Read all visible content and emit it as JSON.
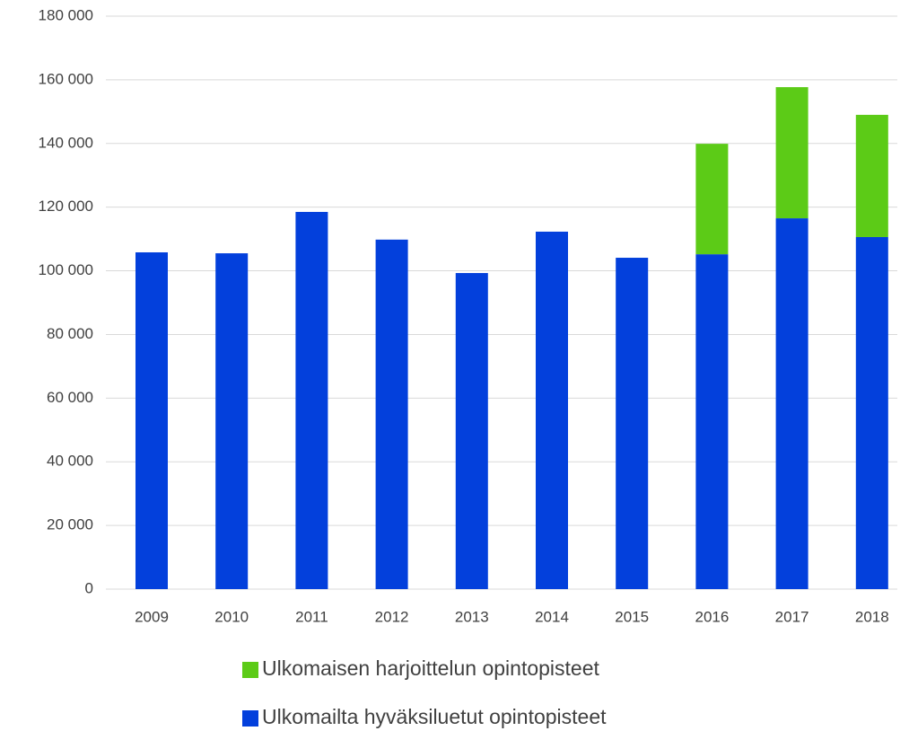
{
  "chart_data": {
    "type": "stacked_bar",
    "categories": [
      "2009",
      "2010",
      "2011",
      "2012",
      "2013",
      "2014",
      "2015",
      "2016",
      "2017",
      "2018"
    ],
    "series": [
      {
        "name": "Ulkomailta hyväksiluetut opintopisteet",
        "color": "#0340dc",
        "values": [
          105800,
          105500,
          118500,
          109800,
          99300,
          112300,
          104100,
          105200,
          116500,
          110600
        ]
      },
      {
        "name": "Ulkomaisen harjoittelun opintopisteet",
        "color": "#5ccb17",
        "values": [
          null,
          null,
          null,
          null,
          null,
          null,
          null,
          34700,
          41200,
          38400
        ]
      }
    ],
    "ylim": [
      0,
      180000
    ],
    "yticks": [
      0,
      {
        "value": 20000,
        "label": "20 000"
      },
      {
        "value": 40000,
        "label": "40 000"
      },
      {
        "value": 60000,
        "label": "60 000"
      },
      {
        "value": 80000,
        "label": "80 000"
      },
      {
        "value": 100000,
        "label": "100 000"
      },
      {
        "value": 120000,
        "label": "120 000"
      },
      {
        "value": 140000,
        "label": "140 000"
      },
      {
        "value": 160000,
        "label": "160 000"
      },
      {
        "value": 180000,
        "label": "180 000"
      }
    ],
    "grid": true
  }
}
